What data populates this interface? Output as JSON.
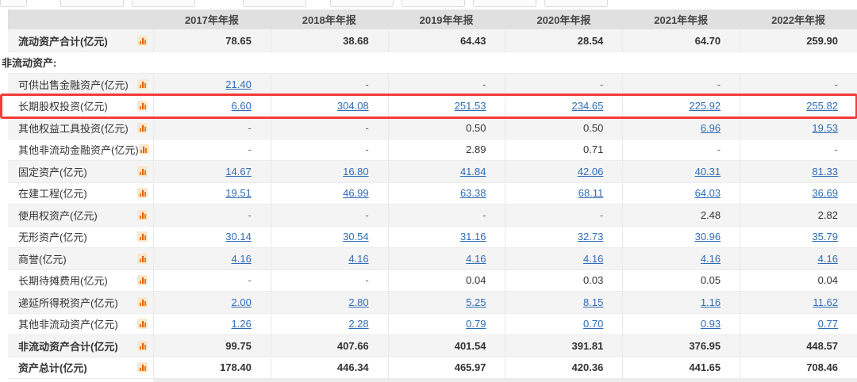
{
  "table": {
    "columns": [
      "2017年年报",
      "2018年年报",
      "2019年年报",
      "2020年年报",
      "2021年年报",
      "2022年年报"
    ],
    "rows": [
      {
        "label": "流动资产合计(亿元)",
        "icon": true,
        "bold": true,
        "section": false,
        "highlighted": false,
        "values": [
          "78.65",
          "38.68",
          "64.43",
          "28.54",
          "64.70",
          "259.90"
        ],
        "links": [
          false,
          false,
          false,
          false,
          false,
          false
        ]
      },
      {
        "label": "非流动资产:",
        "icon": false,
        "bold": true,
        "section": true,
        "highlighted": false,
        "values": [],
        "links": []
      },
      {
        "label": "可供出售金融资产(亿元)",
        "icon": true,
        "bold": false,
        "section": false,
        "highlighted": false,
        "values": [
          "21.40",
          "-",
          "-",
          "-",
          "-",
          "-"
        ],
        "links": [
          true,
          false,
          false,
          false,
          false,
          false
        ]
      },
      {
        "label": "长期股权投资(亿元)",
        "icon": true,
        "bold": false,
        "section": false,
        "highlighted": true,
        "values": [
          "6.60",
          "304.08",
          "251.53",
          "234.65",
          "225.92",
          "255.82"
        ],
        "links": [
          true,
          true,
          true,
          true,
          true,
          true
        ]
      },
      {
        "label": "其他权益工具投资(亿元)",
        "icon": true,
        "bold": false,
        "section": false,
        "highlighted": false,
        "values": [
          "-",
          "-",
          "0.50",
          "0.50",
          "6.96",
          "19.53"
        ],
        "links": [
          false,
          false,
          false,
          false,
          true,
          true
        ]
      },
      {
        "label": "其他非流动金融资产(亿元)",
        "icon": true,
        "bold": false,
        "section": false,
        "highlighted": false,
        "values": [
          "-",
          "-",
          "2.89",
          "0.71",
          "-",
          "-"
        ],
        "links": [
          false,
          false,
          false,
          false,
          false,
          false
        ]
      },
      {
        "label": "固定资产(亿元)",
        "icon": true,
        "bold": false,
        "section": false,
        "highlighted": false,
        "values": [
          "14.67",
          "16.80",
          "41.84",
          "42.06",
          "40.31",
          "81.33"
        ],
        "links": [
          true,
          true,
          true,
          true,
          true,
          true
        ]
      },
      {
        "label": "在建工程(亿元)",
        "icon": true,
        "bold": false,
        "section": false,
        "highlighted": false,
        "values": [
          "19.51",
          "46.99",
          "63.38",
          "68.11",
          "64.03",
          "36.69"
        ],
        "links": [
          true,
          true,
          true,
          true,
          true,
          true
        ]
      },
      {
        "label": "使用权资产(亿元)",
        "icon": true,
        "bold": false,
        "section": false,
        "highlighted": false,
        "values": [
          "-",
          "-",
          "-",
          "-",
          "2.48",
          "2.82"
        ],
        "links": [
          false,
          false,
          false,
          false,
          false,
          false
        ]
      },
      {
        "label": "无形资产(亿元)",
        "icon": true,
        "bold": false,
        "section": false,
        "highlighted": false,
        "values": [
          "30.14",
          "30.54",
          "31.16",
          "32.73",
          "30.96",
          "35.79"
        ],
        "links": [
          true,
          true,
          true,
          true,
          true,
          true
        ]
      },
      {
        "label": "商誉(亿元)",
        "icon": true,
        "bold": false,
        "section": false,
        "highlighted": false,
        "values": [
          "4.16",
          "4.16",
          "4.16",
          "4.16",
          "4.16",
          "4.16"
        ],
        "links": [
          true,
          true,
          true,
          true,
          true,
          true
        ]
      },
      {
        "label": "长期待摊费用(亿元)",
        "icon": true,
        "bold": false,
        "section": false,
        "highlighted": false,
        "values": [
          "-",
          "-",
          "0.04",
          "0.03",
          "0.05",
          "0.04"
        ],
        "links": [
          false,
          false,
          false,
          false,
          false,
          false
        ]
      },
      {
        "label": "递延所得税资产(亿元)",
        "icon": true,
        "bold": false,
        "section": false,
        "highlighted": false,
        "values": [
          "2.00",
          "2.80",
          "5.25",
          "8.15",
          "1.16",
          "11.62"
        ],
        "links": [
          true,
          true,
          true,
          true,
          true,
          true
        ]
      },
      {
        "label": "其他非流动资产(亿元)",
        "icon": true,
        "bold": false,
        "section": false,
        "highlighted": false,
        "values": [
          "1.26",
          "2.28",
          "0.79",
          "0.70",
          "0.93",
          "0.77"
        ],
        "links": [
          true,
          true,
          true,
          true,
          true,
          true
        ]
      },
      {
        "label": "非流动资产合计(亿元)",
        "icon": true,
        "bold": true,
        "section": false,
        "highlighted": false,
        "values": [
          "99.75",
          "407.66",
          "401.54",
          "391.81",
          "376.95",
          "448.57"
        ],
        "links": [
          false,
          false,
          false,
          false,
          false,
          false
        ]
      },
      {
        "label": "资产总计(亿元)",
        "icon": true,
        "bold": true,
        "section": false,
        "highlighted": false,
        "values": [
          "178.40",
          "446.34",
          "465.97",
          "420.36",
          "441.65",
          "708.46"
        ],
        "links": [
          false,
          false,
          false,
          false,
          false,
          false
        ]
      }
    ]
  },
  "highlight": {
    "target_row": "长期股权投资(亿元)",
    "border_color": "#f43a3a"
  },
  "empty_value": "-",
  "colors": {
    "header_bg": "#e0e0e0",
    "zebra_row": "#f4f4f4",
    "link": "#2e6cb5",
    "highlight_border": "#f43a3a",
    "icon_orange": "#ed7a12",
    "icon_bg": "#fbe7cb"
  },
  "icons": {
    "row_metric_icon": "bar-chart-icon"
  }
}
